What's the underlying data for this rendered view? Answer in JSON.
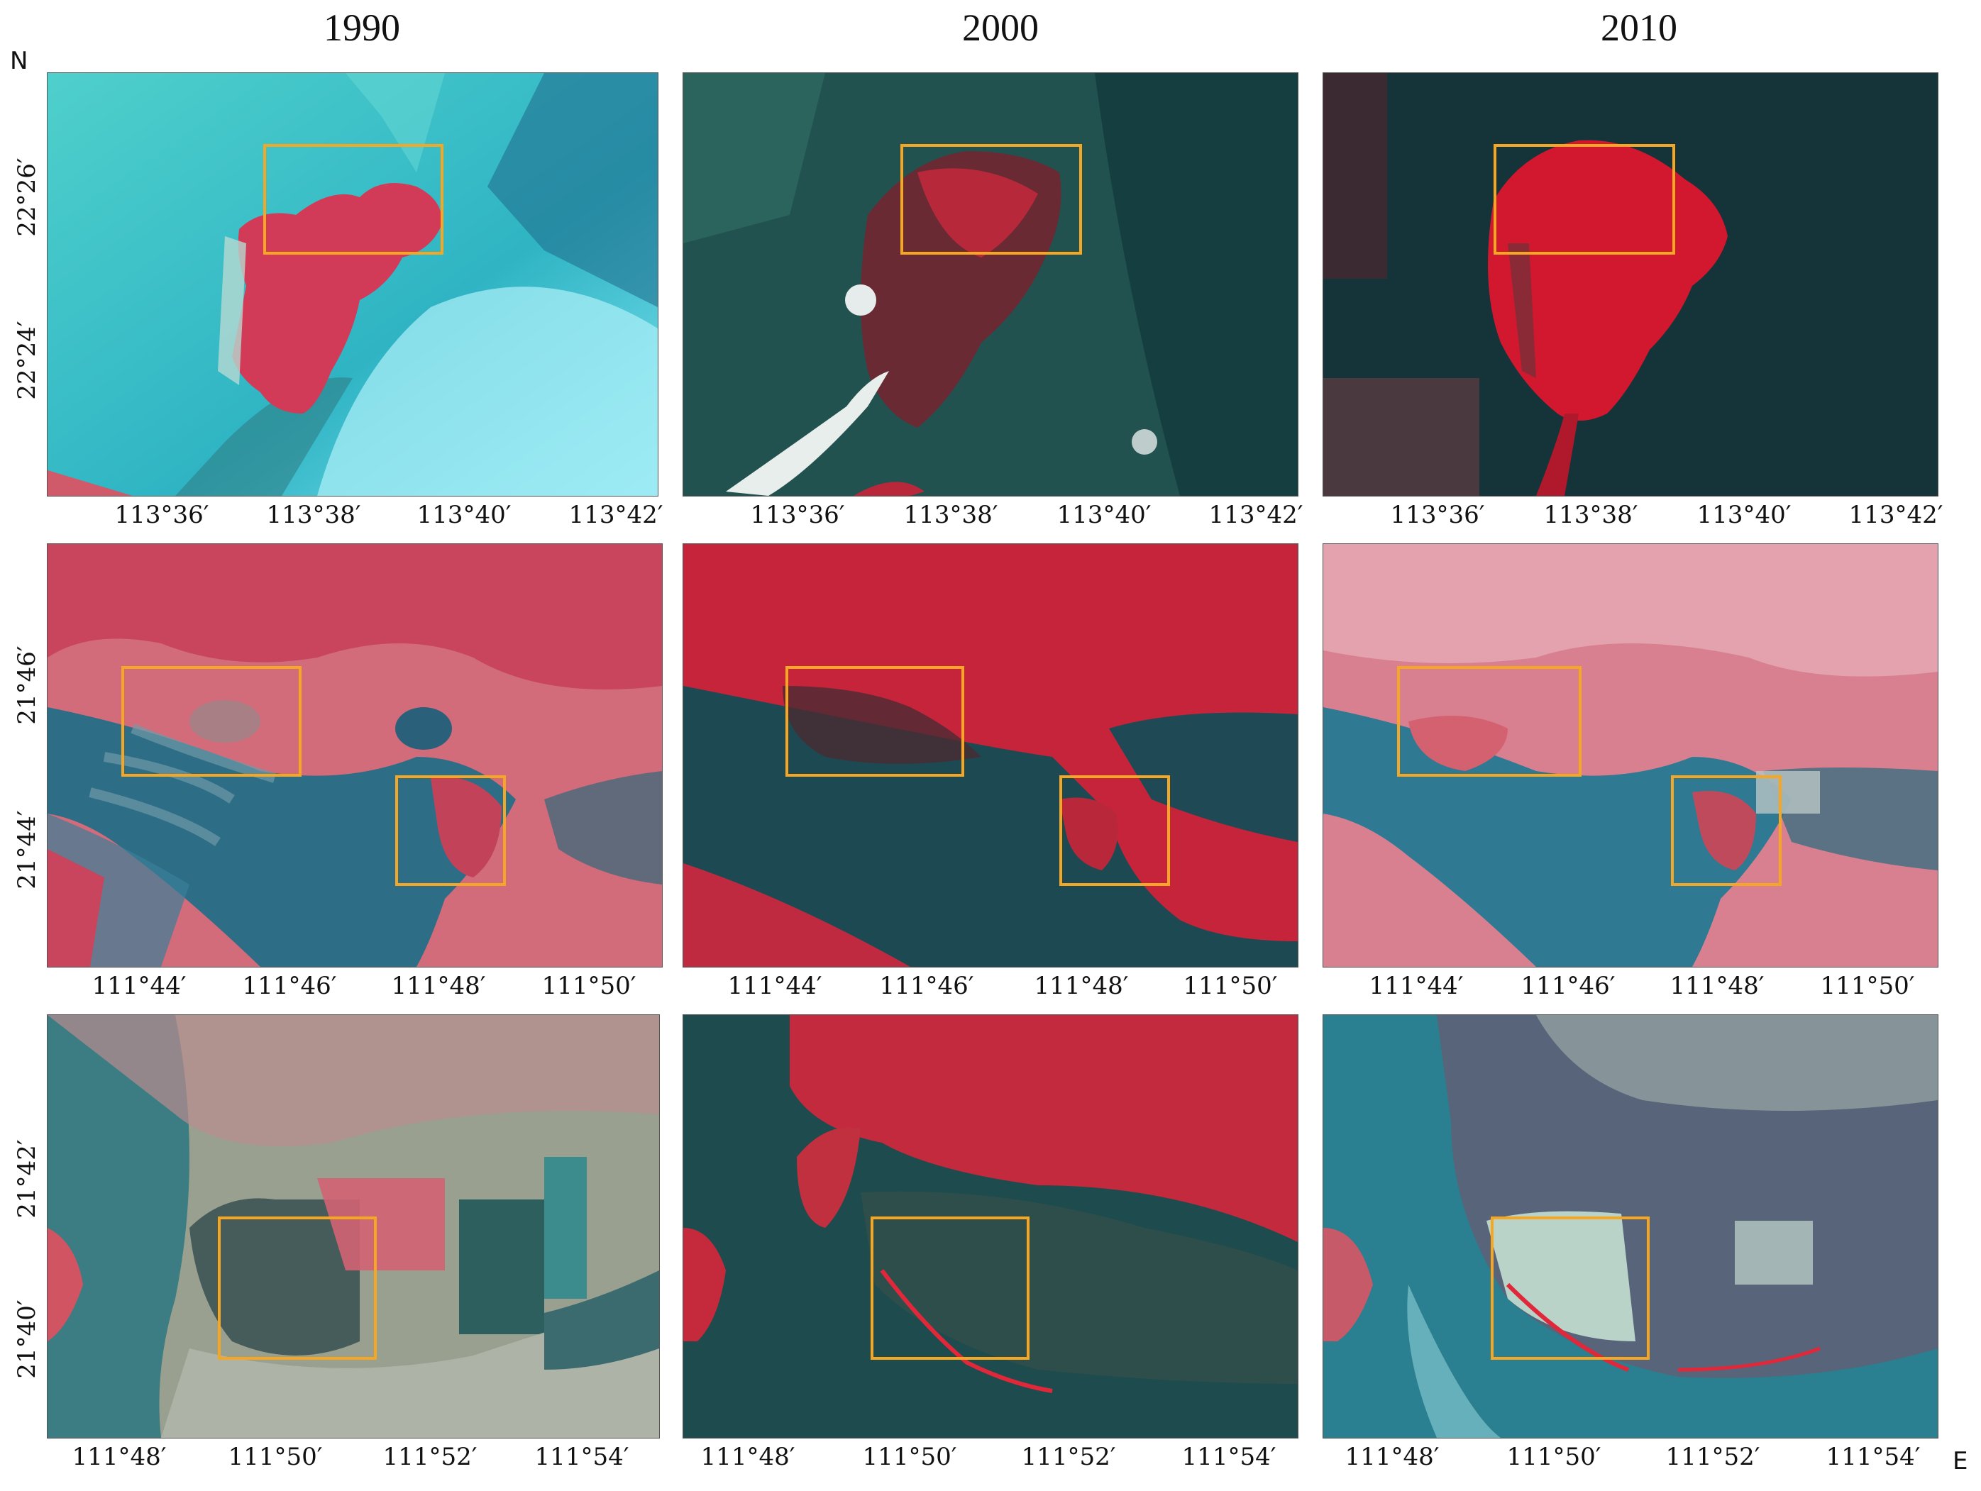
{
  "years": [
    "1990",
    "2000",
    "2010"
  ],
  "compass": {
    "north": "N",
    "east": "E"
  },
  "rows": [
    {
      "name": "row-1",
      "x_ticks": [
        "113°36′",
        "113°38′",
        "113°40′",
        "113°42′"
      ],
      "y_ticks": [
        "22°26′",
        "22°24′"
      ]
    },
    {
      "name": "row-2",
      "x_ticks": [
        "111°44′",
        "111°46′",
        "111°48′",
        "111°50′"
      ],
      "y_ticks": [
        "21°46′",
        "21°44′"
      ]
    },
    {
      "name": "row-3",
      "x_ticks": [
        "111°48′",
        "111°50′",
        "111°52′",
        "111°54′"
      ],
      "y_ticks": [
        "21°42′",
        "21°40′"
      ]
    }
  ],
  "colors": {
    "highlight_box": "#f5a623",
    "vegetation_red": "#d9324a",
    "mangrove_outline": "#ff1a1a",
    "water_1990": "#3fbfc0",
    "water_dark": "#1c4a4f",
    "mudflat": "#8fa7a0"
  }
}
